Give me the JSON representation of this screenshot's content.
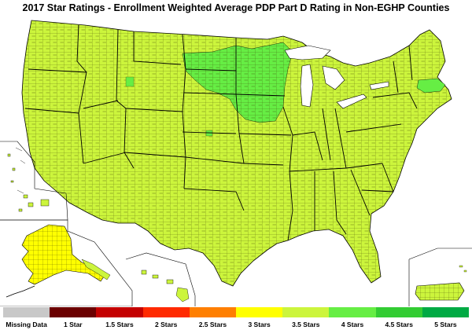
{
  "title": "2017 Star Ratings - Enrollment Weighted Average PDP Part D Rating in Non-EGHP Counties",
  "legend": [
    {
      "label": "Missing Data",
      "color": "#c8c8c8"
    },
    {
      "label": "1 Star",
      "color": "#6b0000"
    },
    {
      "label": "1.5 Stars",
      "color": "#c40000"
    },
    {
      "label": "2 Stars",
      "color": "#ff2a00"
    },
    {
      "label": "2.5 Stars",
      "color": "#ff7f00"
    },
    {
      "label": "3 Stars",
      "color": "#ffff00"
    },
    {
      "label": "3.5 Stars",
      "color": "#ccf53c"
    },
    {
      "label": "4 Stars",
      "color": "#66ee44"
    },
    {
      "label": "4.5 Stars",
      "color": "#33cc33"
    },
    {
      "label": "5 Stars",
      "color": "#00aa44"
    }
  ],
  "regions": {
    "contiguous_us": "3.5 Stars",
    "upper_midwest": "4 Stars",
    "massachusetts": "4 Stars",
    "alaska": "3 Stars",
    "hawaii": "3.5 Stars",
    "puerto_rico": "3.5 Stars"
  }
}
